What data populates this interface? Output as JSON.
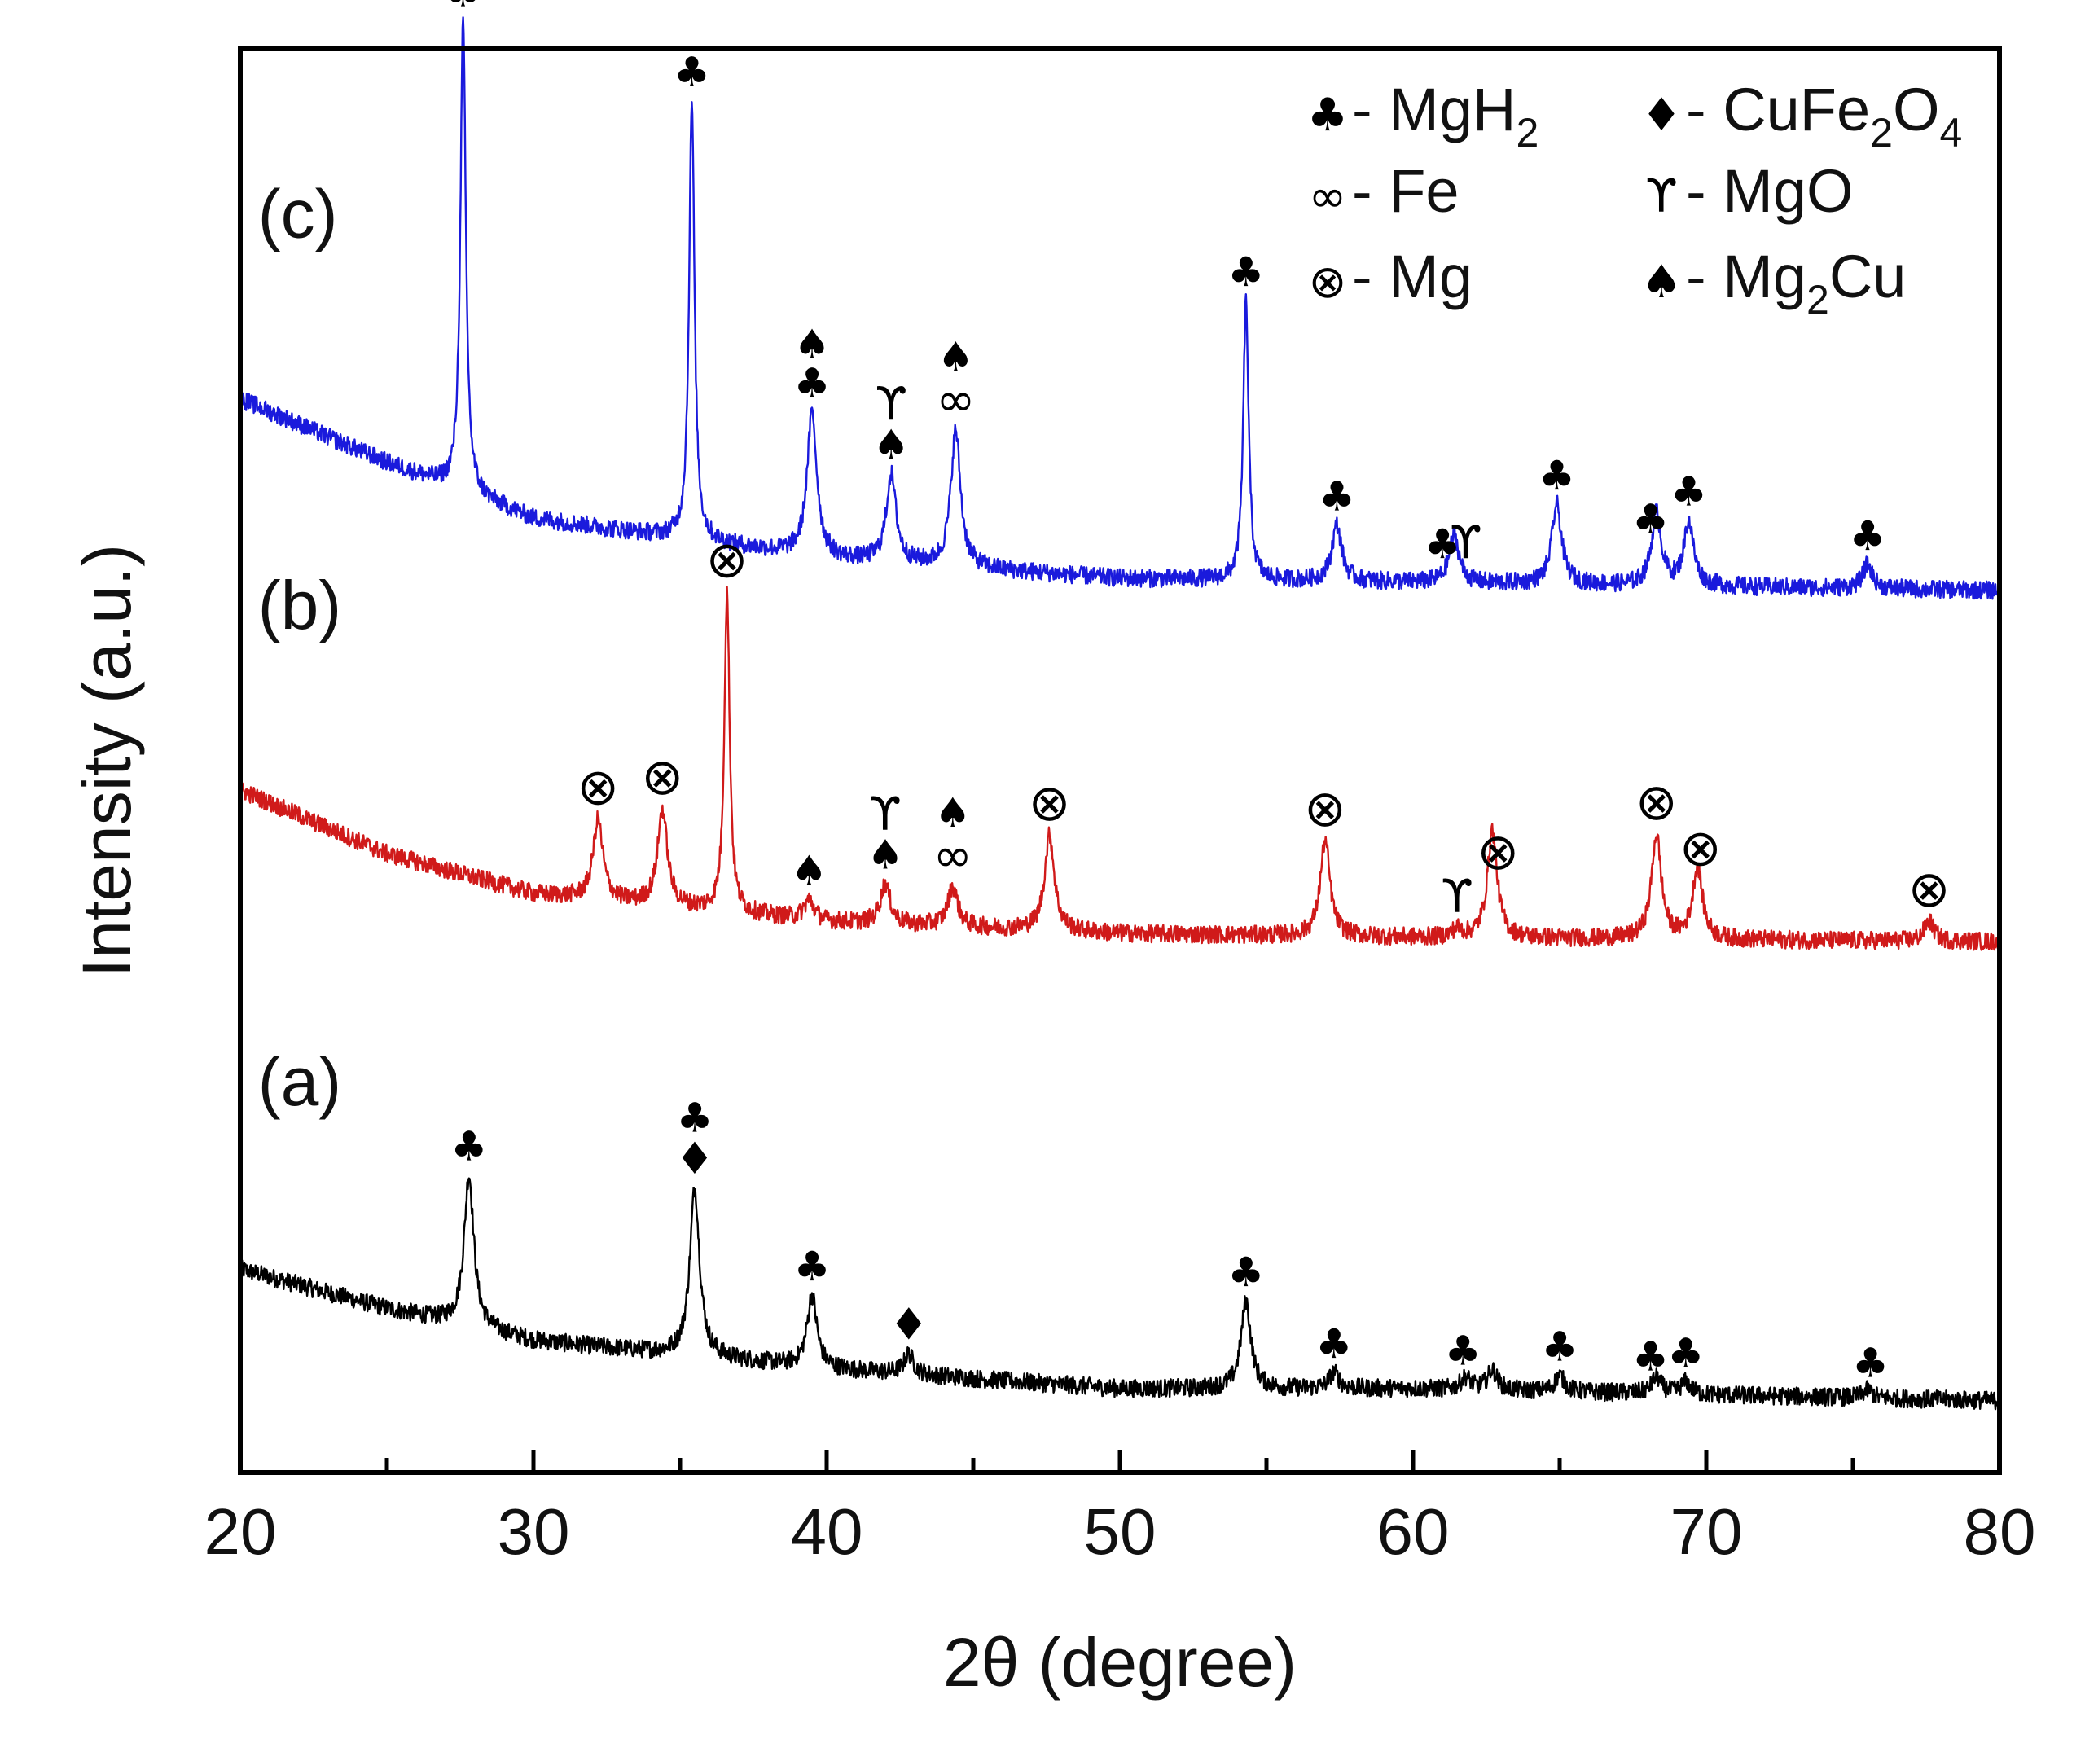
{
  "chart_data": {
    "type": "line",
    "xlabel": "2θ (degree)",
    "ylabel": "Intensity (a.u.)",
    "xlim": [
      20,
      80
    ],
    "x_ticks": [
      "20",
      "30",
      "40",
      "50",
      "60",
      "70",
      "80"
    ],
    "series": [
      {
        "name": "(a)",
        "color": "#000000",
        "offset": 0,
        "baseline": [
          [
            20,
            0.3
          ],
          [
            25,
            0.2
          ],
          [
            30,
            0.12
          ],
          [
            40,
            0.05
          ],
          [
            50,
            0.0
          ],
          [
            60,
            0.0
          ],
          [
            80,
            -0.03
          ]
        ],
        "peaks": [
          [
            27.8,
            0.38
          ],
          [
            35.5,
            0.42
          ],
          [
            39.5,
            0.18
          ],
          [
            42.8,
            0.05
          ],
          [
            54.3,
            0.22
          ],
          [
            57.3,
            0.04
          ],
          [
            61.8,
            0.03
          ],
          [
            62.7,
            0.05
          ],
          [
            65.0,
            0.04
          ],
          [
            68.3,
            0.04
          ],
          [
            69.3,
            0.03
          ],
          [
            75.5,
            0.02
          ]
        ]
      },
      {
        "name": "(b)",
        "color": "#d01a1a",
        "offset": 1.12,
        "baseline": [
          [
            20,
            0.38
          ],
          [
            25,
            0.22
          ],
          [
            30,
            0.12
          ],
          [
            40,
            0.05
          ],
          [
            50,
            0.02
          ],
          [
            60,
            0.01
          ],
          [
            80,
            0.0
          ]
        ],
        "peaks": [
          [
            32.2,
            0.2
          ],
          [
            34.4,
            0.24
          ],
          [
            36.6,
            0.8
          ],
          [
            39.4,
            0.05
          ],
          [
            42.0,
            0.1
          ],
          [
            44.3,
            0.1
          ],
          [
            47.6,
            0.24
          ],
          [
            57.0,
            0.24
          ],
          [
            61.5,
            0.02
          ],
          [
            62.7,
            0.27
          ],
          [
            68.3,
            0.26
          ],
          [
            69.7,
            0.18
          ],
          [
            77.6,
            0.05
          ]
        ]
      },
      {
        "name": "(c)",
        "color": "#1a1adc",
        "offset": 2.0,
        "baseline": [
          [
            20,
            0.48
          ],
          [
            25,
            0.32
          ],
          [
            30,
            0.18
          ],
          [
            40,
            0.08
          ],
          [
            50,
            0.03
          ],
          [
            60,
            0.02
          ],
          [
            80,
            0.0
          ]
        ],
        "peaks": [
          [
            27.6,
            1.18
          ],
          [
            35.4,
            1.1
          ],
          [
            39.5,
            0.36
          ],
          [
            42.2,
            0.22
          ],
          [
            44.4,
            0.34
          ],
          [
            54.3,
            0.7
          ],
          [
            57.4,
            0.14
          ],
          [
            61.4,
            0.12
          ],
          [
            64.9,
            0.2
          ],
          [
            68.3,
            0.18
          ],
          [
            69.4,
            0.16
          ],
          [
            75.5,
            0.06
          ]
        ]
      }
    ],
    "series_labels": [
      "(a)",
      "(b)",
      "(c)"
    ],
    "legend": [
      {
        "symbol": "♣",
        "label": "- MgH",
        "sub": "2",
        "tail": ""
      },
      {
        "symbol": "♦",
        "label": "- CuFe",
        "sub": "2",
        "tail": "O",
        "sub2": "4"
      },
      {
        "symbol": "∞",
        "label": "- Fe",
        "sub": "",
        "tail": ""
      },
      {
        "symbol": "ϒ",
        "label": "- MgO",
        "sub": "",
        "tail": ""
      },
      {
        "symbol": "⊗",
        "label": "- Mg",
        "sub": "",
        "tail": ""
      },
      {
        "symbol": "♠",
        "label": "- Mg",
        "sub": "2",
        "tail": "Cu"
      }
    ],
    "annotations": [
      {
        "series": "(a)",
        "x": 27.8,
        "stack": [
          "♣"
        ]
      },
      {
        "series": "(a)",
        "x": 35.5,
        "stack": [
          "♦",
          "♣"
        ]
      },
      {
        "series": "(a)",
        "x": 39.5,
        "stack": [
          "♣"
        ]
      },
      {
        "series": "(a)",
        "x": 42.8,
        "stack": [
          "♦"
        ]
      },
      {
        "series": "(a)",
        "x": 54.3,
        "stack": [
          "♣"
        ]
      },
      {
        "series": "(a)",
        "x": 57.3,
        "stack": [
          "♣"
        ]
      },
      {
        "series": "(a)",
        "x": 61.7,
        "stack": [
          "♣"
        ]
      },
      {
        "series": "(a)",
        "x": 65.0,
        "stack": [
          "♣"
        ]
      },
      {
        "series": "(a)",
        "x": 68.1,
        "stack": [
          "♣"
        ]
      },
      {
        "series": "(a)",
        "x": 69.3,
        "stack": [
          "♣"
        ]
      },
      {
        "series": "(a)",
        "x": 75.6,
        "stack": [
          "♣"
        ]
      },
      {
        "series": "(b)",
        "x": 32.2,
        "stack": [
          "⊗"
        ]
      },
      {
        "series": "(b)",
        "x": 34.4,
        "stack": [
          "⊗"
        ]
      },
      {
        "series": "(b)",
        "x": 36.6,
        "stack": [
          "⊗"
        ]
      },
      {
        "series": "(b)",
        "x": 39.4,
        "stack": [
          "♠"
        ]
      },
      {
        "series": "(b)",
        "x": 42.0,
        "stack": [
          "♠",
          "ϒ"
        ]
      },
      {
        "series": "(b)",
        "x": 44.3,
        "stack": [
          "∞",
          "♠"
        ]
      },
      {
        "series": "(b)",
        "x": 47.6,
        "stack": [
          "⊗"
        ]
      },
      {
        "series": "(b)",
        "x": 57.0,
        "stack": [
          "⊗"
        ]
      },
      {
        "series": "(b)",
        "x": 61.5,
        "stack": [
          "ϒ"
        ]
      },
      {
        "series": "(b)",
        "x": 62.9,
        "stack": [
          "⊗"
        ]
      },
      {
        "series": "(b)",
        "x": 68.3,
        "stack": [
          "⊗"
        ]
      },
      {
        "series": "(b)",
        "x": 69.8,
        "stack": [
          "⊗"
        ]
      },
      {
        "series": "(b)",
        "x": 77.6,
        "stack": [
          "⊗"
        ]
      },
      {
        "series": "(c)",
        "x": 27.6,
        "stack": [
          "♣"
        ]
      },
      {
        "series": "(c)",
        "x": 35.4,
        "stack": [
          "♣"
        ]
      },
      {
        "series": "(c)",
        "x": 39.5,
        "stack": [
          "♣",
          "♠"
        ]
      },
      {
        "series": "(c)",
        "x": 42.2,
        "stack": [
          "♠",
          "ϒ"
        ]
      },
      {
        "series": "(c)",
        "x": 44.4,
        "stack": [
          "∞",
          "♠"
        ]
      },
      {
        "series": "(c)",
        "x": 54.3,
        "stack": [
          "♣"
        ]
      },
      {
        "series": "(c)",
        "x": 57.4,
        "stack": [
          "♣"
        ]
      },
      {
        "series": "(c)",
        "x": 61.0,
        "stack": [
          "♣"
        ]
      },
      {
        "series": "(c)",
        "x": 61.8,
        "stack": [
          "ϒ"
        ]
      },
      {
        "series": "(c)",
        "x": 64.9,
        "stack": [
          "♣"
        ]
      },
      {
        "series": "(c)",
        "x": 68.1,
        "stack": [
          "♣"
        ]
      },
      {
        "series": "(c)",
        "x": 69.4,
        "stack": [
          "♣"
        ]
      },
      {
        "series": "(c)",
        "x": 75.5,
        "stack": [
          "♣"
        ]
      }
    ]
  }
}
